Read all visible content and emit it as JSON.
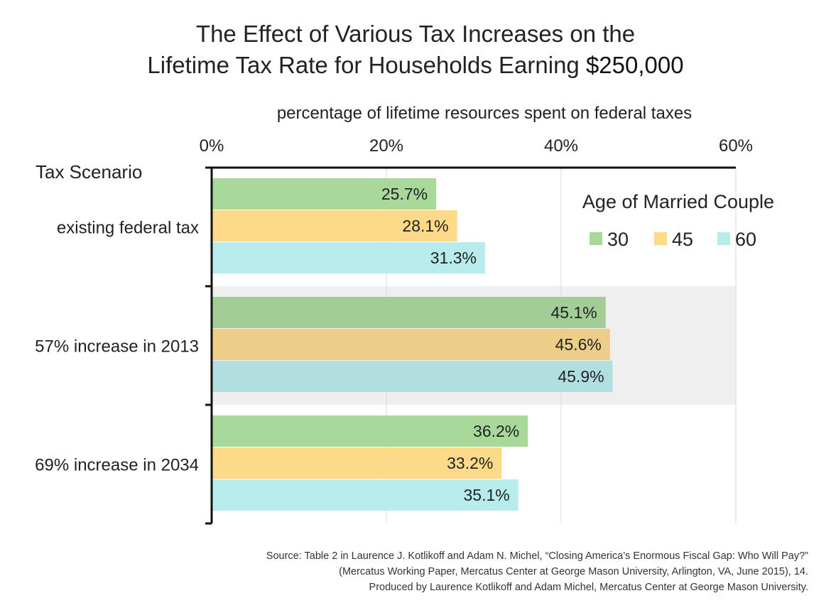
{
  "title": {
    "line1": "The Effect of Various Tax Increases on the",
    "line2_prefix": "Lifetime Tax Rate for Households Earning ",
    "line2_emphasis": "$250,000"
  },
  "source": {
    "line1": "Source: Table 2 in Laurence J. Kotlikoff and Adam N. Michel, “Closing America’s Enormous Fiscal Gap: Who Will Pay?”",
    "line2": "(Mercatus Working Paper, Mercatus Center at George Mason University, Arlington, VA, June 2015), 14.",
    "line3": "Produced by Laurence Kotlikoff and Adam Michel, Mercatus Center at George Mason University."
  },
  "chart_data": {
    "type": "bar",
    "orientation": "horizontal",
    "xlabel": "percentage of lifetime resources spent on federal taxes",
    "ylabel": "Tax Scenario",
    "xlim": [
      0,
      60
    ],
    "xticks": [
      0,
      20,
      40,
      60
    ],
    "xtick_labels": [
      "0%",
      "20%",
      "40%",
      "60%"
    ],
    "x_axis_position": "top",
    "grid": true,
    "categories": [
      "existing federal tax",
      "57% increase in 2013",
      "69% increase in 2034"
    ],
    "highlighted_category": "57% increase in 2013",
    "legend_title": "Age of Married Couple",
    "legend_position": "top-right",
    "series": [
      {
        "name": "30",
        "color": "#a8d89a",
        "values": [
          25.7,
          45.1,
          36.2
        ],
        "labels": [
          "25.7%",
          "45.1%",
          "36.2%"
        ]
      },
      {
        "name": "45",
        "color": "#fdd98a",
        "values": [
          28.1,
          45.6,
          33.2
        ],
        "labels": [
          "28.1%",
          "45.6%",
          "33.2%"
        ]
      },
      {
        "name": "60",
        "color": "#b8ecec",
        "values": [
          31.3,
          45.9,
          35.1
        ],
        "labels": [
          "31.3%",
          "45.9%",
          "35.1%"
        ]
      }
    ]
  }
}
